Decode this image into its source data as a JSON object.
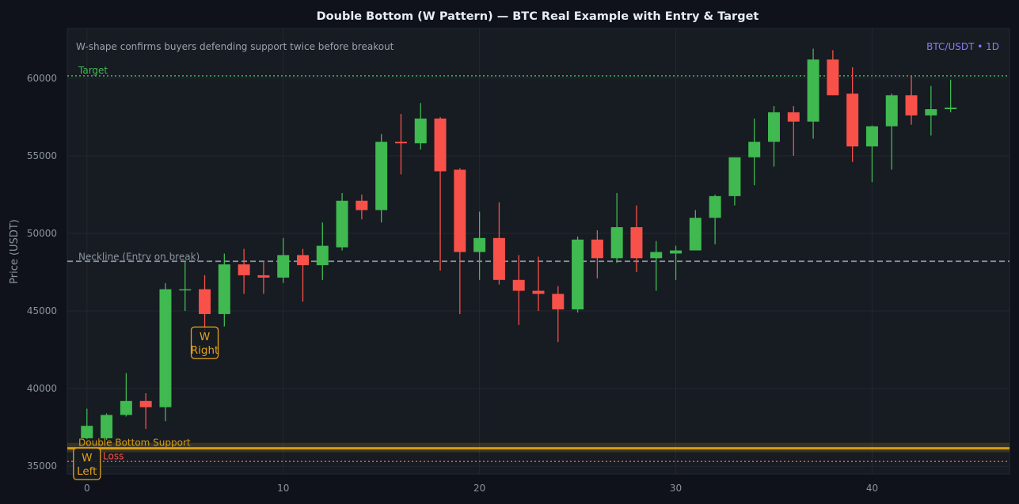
{
  "chart_data": {
    "type": "candlestick",
    "title": "Double Bottom (W Pattern) — BTC Real Example with Entry & Target",
    "subtitle": "W-shape confirms buyers defending support twice before breakout",
    "pair_label": "BTC/USDT • 1D",
    "xlabel": "",
    "ylabel": "Price (USDT)",
    "xlim": [
      -1,
      47
    ],
    "ylim": [
      34500,
      63200
    ],
    "x_ticks": [
      0,
      10,
      20,
      30,
      40
    ],
    "y_ticks": [
      35000,
      40000,
      45000,
      50000,
      55000,
      60000
    ],
    "grid": true,
    "colors": {
      "up": "#3fb950",
      "down": "#f85149",
      "support": "#d69e15",
      "neckline": "#8b949e",
      "target": "#3fb950",
      "stop": "#f85149",
      "pair_label": "#8b7cf6",
      "annotation": "#e3a21a"
    },
    "levels": {
      "target": {
        "value": 60150,
        "label": "Target"
      },
      "neckline": {
        "value": 48200,
        "label": "Neckline (Entry on break)"
      },
      "support": {
        "value": 36150,
        "label": "Double Bottom Support"
      },
      "stop": {
        "value": 35300,
        "label": "Loss"
      }
    },
    "annotations": [
      {
        "x": 0,
        "y": 35100,
        "lines": [
          "W",
          "Left"
        ]
      },
      {
        "x": 6,
        "y": 42900,
        "lines": [
          "W",
          "Right"
        ]
      }
    ],
    "candles": [
      {
        "x": 0,
        "open": 36800,
        "close": 37600,
        "high": 38700,
        "low": 36750
      },
      {
        "x": 1,
        "open": 36800,
        "close": 38300,
        "high": 38400,
        "low": 36700
      },
      {
        "x": 2,
        "open": 38300,
        "close": 39200,
        "high": 41000,
        "low": 38200
      },
      {
        "x": 3,
        "open": 39200,
        "close": 38800,
        "high": 39700,
        "low": 37400
      },
      {
        "x": 4,
        "open": 38800,
        "close": 46400,
        "high": 46800,
        "low": 37900
      },
      {
        "x": 5,
        "open": 46400,
        "close": 46400,
        "high": 48200,
        "low": 45000
      },
      {
        "x": 6,
        "open": 46400,
        "close": 44800,
        "high": 47300,
        "low": 43500
      },
      {
        "x": 7,
        "open": 44800,
        "close": 48000,
        "high": 48700,
        "low": 44000
      },
      {
        "x": 8,
        "open": 48000,
        "close": 47300,
        "high": 49000,
        "low": 46100
      },
      {
        "x": 9,
        "open": 47300,
        "close": 47150,
        "high": 48200,
        "low": 46100
      },
      {
        "x": 10,
        "open": 47150,
        "close": 48600,
        "high": 49700,
        "low": 46800
      },
      {
        "x": 11,
        "open": 48600,
        "close": 47950,
        "high": 49000,
        "low": 45600
      },
      {
        "x": 12,
        "open": 47950,
        "close": 49200,
        "high": 50700,
        "low": 47000
      },
      {
        "x": 13,
        "open": 49100,
        "close": 52100,
        "high": 52600,
        "low": 48900
      },
      {
        "x": 14,
        "open": 52100,
        "close": 51500,
        "high": 52500,
        "low": 50900
      },
      {
        "x": 15,
        "open": 51500,
        "close": 55900,
        "high": 56400,
        "low": 50700
      },
      {
        "x": 16,
        "open": 55900,
        "close": 55800,
        "high": 57700,
        "low": 53800
      },
      {
        "x": 17,
        "open": 55800,
        "close": 57400,
        "high": 58400,
        "low": 55400
      },
      {
        "x": 18,
        "open": 57400,
        "close": 54000,
        "high": 57500,
        "low": 47600
      },
      {
        "x": 19,
        "open": 54100,
        "close": 48800,
        "high": 54200,
        "low": 44800
      },
      {
        "x": 20,
        "open": 48800,
        "close": 49700,
        "high": 51400,
        "low": 47000
      },
      {
        "x": 21,
        "open": 49700,
        "close": 47000,
        "high": 52000,
        "low": 46700
      },
      {
        "x": 22,
        "open": 47000,
        "close": 46300,
        "high": 48600,
        "low": 44100
      },
      {
        "x": 23,
        "open": 46300,
        "close": 46100,
        "high": 48500,
        "low": 45000
      },
      {
        "x": 24,
        "open": 46100,
        "close": 45100,
        "high": 46600,
        "low": 43000
      },
      {
        "x": 25,
        "open": 45100,
        "close": 49600,
        "high": 49800,
        "low": 44900
      },
      {
        "x": 26,
        "open": 49600,
        "close": 48400,
        "high": 50200,
        "low": 47100
      },
      {
        "x": 27,
        "open": 48400,
        "close": 50400,
        "high": 52600,
        "low": 48100
      },
      {
        "x": 28,
        "open": 50400,
        "close": 48400,
        "high": 51800,
        "low": 47500
      },
      {
        "x": 29,
        "open": 48400,
        "close": 48800,
        "high": 49500,
        "low": 46300
      },
      {
        "x": 30,
        "open": 48700,
        "close": 48900,
        "high": 49200,
        "low": 47000
      },
      {
        "x": 31,
        "open": 48900,
        "close": 51000,
        "high": 51500,
        "low": 48900
      },
      {
        "x": 32,
        "open": 51000,
        "close": 52400,
        "high": 52500,
        "low": 49300
      },
      {
        "x": 33,
        "open": 52400,
        "close": 54900,
        "high": 54900,
        "low": 51800
      },
      {
        "x": 34,
        "open": 54900,
        "close": 55900,
        "high": 57400,
        "low": 53100
      },
      {
        "x": 35,
        "open": 55900,
        "close": 57800,
        "high": 58200,
        "low": 54300
      },
      {
        "x": 36,
        "open": 57800,
        "close": 57200,
        "high": 58200,
        "low": 55000
      },
      {
        "x": 37,
        "open": 57200,
        "close": 61200,
        "high": 61900,
        "low": 56100
      },
      {
        "x": 38,
        "open": 61200,
        "close": 58900,
        "high": 61800,
        "low": 58900
      },
      {
        "x": 39,
        "open": 59000,
        "close": 55600,
        "high": 60700,
        "low": 54600
      },
      {
        "x": 40,
        "open": 55600,
        "close": 56900,
        "high": 56950,
        "low": 53300
      },
      {
        "x": 41,
        "open": 56900,
        "close": 58900,
        "high": 59000,
        "low": 54100
      },
      {
        "x": 42,
        "open": 58900,
        "close": 57600,
        "high": 60150,
        "low": 57000
      },
      {
        "x": 43,
        "open": 57600,
        "close": 58000,
        "high": 59500,
        "low": 56300
      },
      {
        "x": 44,
        "open": 58000,
        "close": 58100,
        "high": 59900,
        "low": 57800
      }
    ]
  }
}
